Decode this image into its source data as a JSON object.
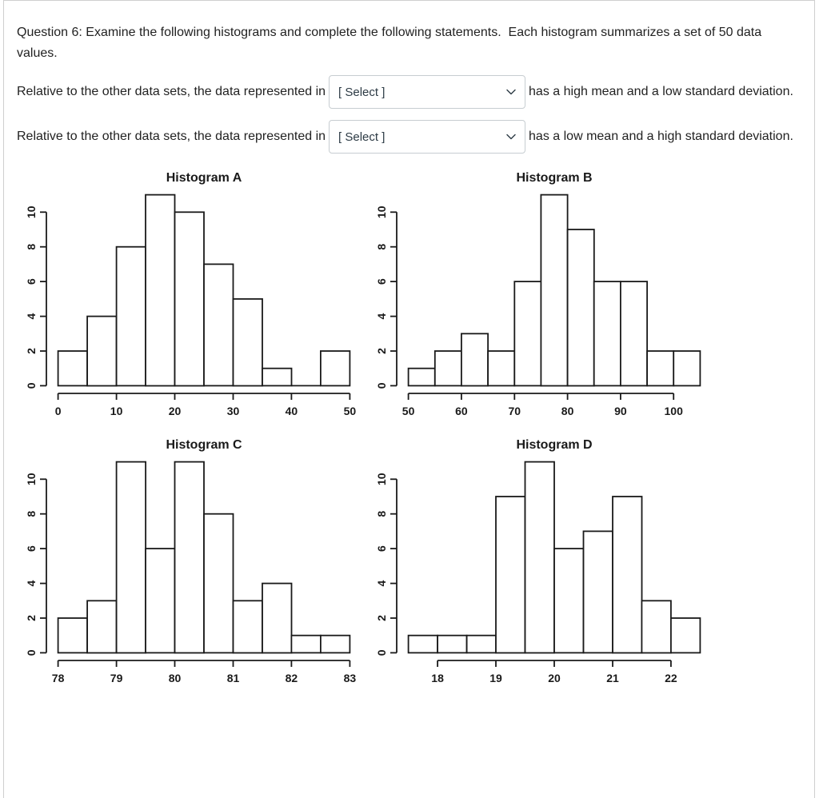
{
  "page": {
    "question_text": "Question 6: Examine the following histograms and complete the following statements.  Each histogram summarizes a set of 50 data values.",
    "statements": [
      {
        "prefix": "Relative to the other data sets, the data represented in",
        "select_label": "[ Select ]",
        "suffix": "has a high mean and a low standard deviation."
      },
      {
        "prefix": "Relative to the other data sets, the data represented in",
        "select_label": "[ Select ]",
        "suffix": "has a low mean and a high standard deviation."
      }
    ]
  },
  "colors": {
    "text": "#222222",
    "page_border": "#cfcfcf",
    "select_border": "#c7cdd1",
    "select_text": "#2d3b45",
    "chart_stroke": "#1a1a1a",
    "bar_fill": "#ffffff"
  },
  "chart_data": [
    {
      "type": "bar",
      "subtype": "histogram",
      "title": "Histogram A",
      "n_values": 50,
      "bin_start": 0,
      "bin_width": 5,
      "counts": [
        2,
        4,
        8,
        11,
        10,
        7,
        5,
        1,
        0,
        2
      ],
      "x_ticks": [
        0,
        10,
        20,
        30,
        40,
        50
      ],
      "y_ticks": [
        0,
        2,
        4,
        6,
        8,
        10
      ],
      "ylim": [
        0,
        11
      ],
      "grid": false,
      "legend": "none"
    },
    {
      "type": "bar",
      "subtype": "histogram",
      "title": "Histogram B",
      "n_values": 50,
      "bin_start": 50,
      "bin_width": 5,
      "counts": [
        1,
        2,
        3,
        2,
        6,
        11,
        9,
        6,
        6,
        2,
        2
      ],
      "x_ticks": [
        50,
        60,
        70,
        80,
        90,
        100
      ],
      "y_ticks": [
        0,
        2,
        4,
        6,
        8,
        10
      ],
      "ylim": [
        0,
        11
      ],
      "grid": false,
      "legend": "none"
    },
    {
      "type": "bar",
      "subtype": "histogram",
      "title": "Histogram C",
      "n_values": 50,
      "bin_start": 78,
      "bin_width": 0.5,
      "counts": [
        2,
        3,
        11,
        6,
        11,
        8,
        3,
        4,
        1,
        1
      ],
      "x_ticks": [
        78,
        79,
        80,
        81,
        82,
        83
      ],
      "y_ticks": [
        0,
        2,
        4,
        6,
        8,
        10
      ],
      "ylim": [
        0,
        11
      ],
      "grid": false,
      "legend": "none"
    },
    {
      "type": "bar",
      "subtype": "histogram",
      "title": "Histogram D",
      "n_values": 50,
      "bin_start": 17.5,
      "bin_width": 0.5,
      "counts": [
        1,
        1,
        1,
        9,
        11,
        6,
        7,
        9,
        3,
        2
      ],
      "x_ticks": [
        18,
        19,
        20,
        21,
        22
      ],
      "y_ticks": [
        0,
        2,
        4,
        6,
        8,
        10
      ],
      "ylim": [
        0,
        11
      ],
      "grid": false,
      "legend": "none"
    }
  ]
}
